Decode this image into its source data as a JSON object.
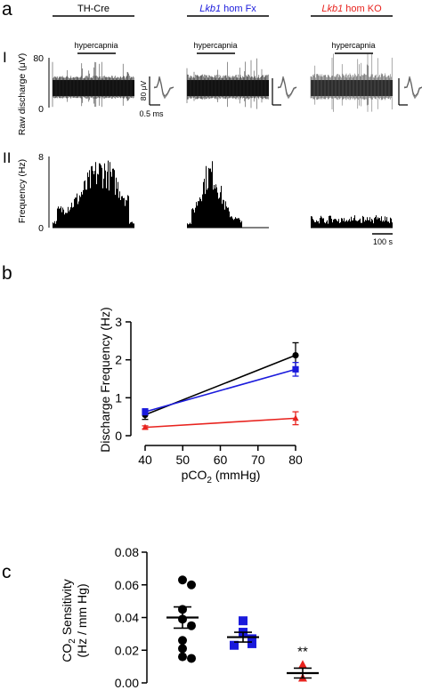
{
  "panel_labels": {
    "a": "a",
    "b": "b",
    "c": "c",
    "row1": "I",
    "row2": "II"
  },
  "panel_a": {
    "groups": [
      {
        "name": "TH-Cre",
        "italic_part": "",
        "rest": "TH-Cre",
        "color": "#000000"
      },
      {
        "name": "Lkb1 hom Fx",
        "italic_part": "Lkb1",
        "rest": " hom Fx",
        "color": "#1a1adc"
      },
      {
        "name": "Lkb1 hom KO",
        "italic_part": "Lkb1",
        "rest": " hom KO",
        "color": "#e8231e"
      }
    ],
    "hypercapnia_label": "hypercapnia",
    "raw_ylabel": "Raw discharge (μV)",
    "raw_ticks": [
      "80",
      "0"
    ],
    "freq_ylabel": "Frequency (Hz)",
    "freq_ticks": [
      "8",
      "0"
    ],
    "scale_voltage": "80 μV",
    "scale_time_spike": "0.5 ms",
    "scale_time_hist": "100 s"
  },
  "chart_data": [
    {
      "type": "line",
      "panel": "b",
      "xlabel": "pCO2 (mmHg)",
      "ylabel": "Discharge Frequency (Hz)",
      "x": [
        40,
        80
      ],
      "xlim": [
        40,
        80
      ],
      "ylim": [
        0,
        3
      ],
      "xticks": [
        40,
        50,
        60,
        70,
        80
      ],
      "yticks": [
        0,
        1,
        2,
        3
      ],
      "series": [
        {
          "name": "TH-Cre",
          "color": "#000000",
          "marker": "circle",
          "values": [
            0.55,
            2.12
          ],
          "errors": [
            0.12,
            0.33
          ]
        },
        {
          "name": "Lkb1 hom Fx",
          "color": "#1a1adc",
          "marker": "square",
          "values": [
            0.63,
            1.75
          ],
          "errors": [
            0.08,
            0.18
          ]
        },
        {
          "name": "Lkb1 hom KO",
          "color": "#e8231e",
          "marker": "triangle",
          "values": [
            0.22,
            0.46
          ],
          "errors": [
            0.04,
            0.17
          ]
        }
      ]
    },
    {
      "type": "scatter",
      "panel": "c",
      "ylabel": "CO2 Sensitivity (Hz / mm Hg)",
      "ylim": [
        0,
        0.08
      ],
      "yticks": [
        "0.00",
        "0.02",
        "0.04",
        "0.06",
        "0.08"
      ],
      "annotation": "**",
      "groups": [
        {
          "name": "TH-Cre",
          "color": "#000000",
          "marker": "circle",
          "mean": 0.04,
          "sem": 0.0065,
          "values": [
            0.063,
            0.06,
            0.045,
            0.039,
            0.035,
            0.026,
            0.021,
            0.016,
            0.015
          ]
        },
        {
          "name": "Lkb1 hom Fx",
          "color": "#1a1adc",
          "marker": "square",
          "mean": 0.028,
          "sem": 0.003,
          "values": [
            0.038,
            0.031,
            0.027,
            0.024,
            0.023
          ]
        },
        {
          "name": "Lkb1 hom KO",
          "color": "#e8231e",
          "marker": "triangle",
          "mean": 0.006,
          "sem": 0.003,
          "values": [
            0.011,
            0.003
          ]
        }
      ]
    }
  ]
}
